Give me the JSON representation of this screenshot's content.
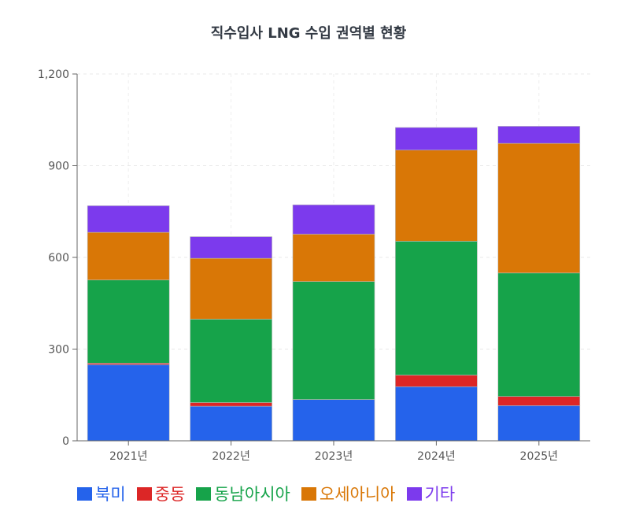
{
  "chart_data": {
    "type": "bar",
    "stacked": true,
    "title": "직수입사 LNG 수입 권역별 현황",
    "xlabel": "",
    "ylabel": "",
    "categories": [
      "2021년",
      "2022년",
      "2023년",
      "2024년",
      "2025년"
    ],
    "ylim": [
      0,
      1200
    ],
    "yticks": [
      0,
      300,
      600,
      900,
      1200
    ],
    "ytick_labels": [
      "0",
      "300",
      "600",
      "900",
      "1,200"
    ],
    "grid": true,
    "legend_position": "bottom",
    "series": [
      {
        "name": "북미",
        "color": "#2563eb",
        "values": [
          249,
          113,
          135,
          177,
          115
        ]
      },
      {
        "name": "중동",
        "color": "#dc2626",
        "values": [
          5,
          12,
          0,
          38,
          30
        ]
      },
      {
        "name": "동남아시아",
        "color": "#16a34a",
        "values": [
          272,
          273,
          386,
          438,
          404
        ]
      },
      {
        "name": "오세아니아",
        "color": "#d97706",
        "values": [
          156,
          199,
          155,
          298,
          424
        ]
      },
      {
        "name": "기타",
        "color": "#7c3aed",
        "values": [
          87,
          71,
          96,
          74,
          56
        ]
      }
    ]
  }
}
